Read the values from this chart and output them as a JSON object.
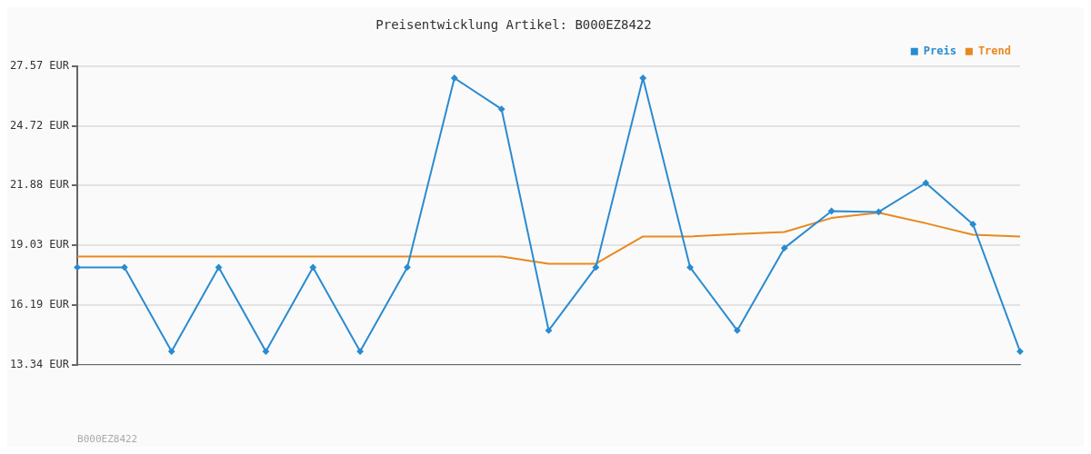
{
  "chart_data": {
    "type": "line",
    "title": "Preisentwicklung Artikel: B000EZ8422",
    "annotations": [
      "B000EZ8422"
    ],
    "categories": [
      null,
      null,
      null,
      null,
      null,
      null,
      null,
      null,
      null,
      null,
      null,
      null,
      null,
      null,
      null,
      null,
      null,
      null,
      null,
      null,
      null
    ],
    "series": [
      {
        "name": "Preis",
        "color": "#2a8bd0",
        "marker": "diamond",
        "values": [
          17.98,
          17.98,
          13.97,
          17.98,
          13.97,
          17.98,
          13.97,
          17.98,
          27.0,
          25.52,
          14.97,
          17.98,
          27.0,
          17.98,
          14.97,
          18.9,
          20.66,
          20.62,
          22.0,
          20.03,
          13.97
        ]
      },
      {
        "name": "Trend",
        "color": "#e8891f",
        "marker": "none",
        "values": [
          18.49,
          18.49,
          18.49,
          18.49,
          18.49,
          18.49,
          18.49,
          18.49,
          18.49,
          18.49,
          18.15,
          18.15,
          19.45,
          19.45,
          19.57,
          19.66,
          20.33,
          20.58,
          20.08,
          19.53,
          19.45
        ]
      }
    ],
    "ylim": [
      13.34,
      27.57
    ],
    "yticks": [
      {
        "value": 13.34,
        "label": "13.34 EUR"
      },
      {
        "value": 16.19,
        "label": "16.19 EUR"
      },
      {
        "value": 19.03,
        "label": "19.03 EUR"
      },
      {
        "value": 21.88,
        "label": "21.88 EUR"
      },
      {
        "value": 24.72,
        "label": "24.72 EUR"
      },
      {
        "value": 27.57,
        "label": "27.57 EUR"
      }
    ],
    "grid": "y",
    "legend": "top right",
    "line_style": "solid"
  }
}
